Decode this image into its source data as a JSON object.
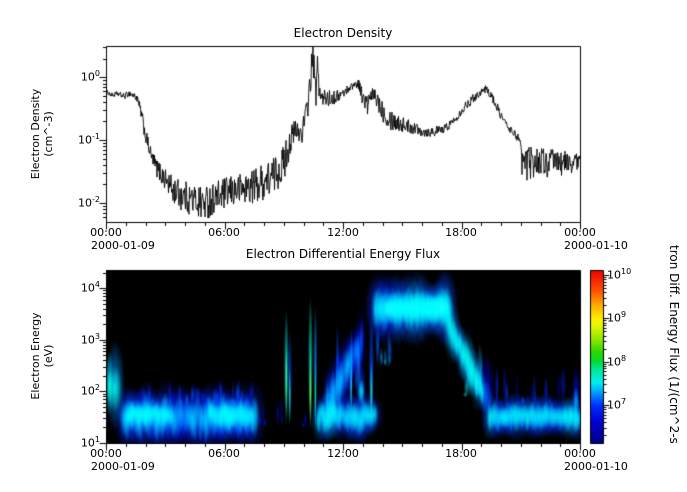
{
  "figure": {
    "background": "#ffffff",
    "frame_color": "#000000"
  },
  "chart_data": [
    {
      "type": "line",
      "title": "Electron Density",
      "ylabel_lines": [
        "Electron Density",
        "(cm^-3)"
      ],
      "line_color": "#000000",
      "x_axis": {
        "ticks": [
          "00:00",
          "06:00",
          "12:00",
          "18:00",
          "00:00"
        ],
        "tick_hours": [
          0,
          6,
          12,
          18,
          24
        ],
        "minor_every_hours": 1,
        "date_left": "2000-01-09",
        "date_right": "2000-01-10"
      },
      "y_axis": {
        "scale": "log",
        "range_log10": [
          -2.3,
          0.5
        ],
        "tick_base": "10",
        "tick_exps": [
          "0",
          "-1",
          "-2"
        ],
        "tick_values": [
          1,
          0.1,
          0.01
        ]
      },
      "series": [
        {
          "name": "electron_density_cm-3",
          "points_t_v_noise": [
            [
              0.0,
              0.6,
              0.03
            ],
            [
              0.3,
              0.52,
              0.04
            ],
            [
              0.6,
              0.55,
              0.04
            ],
            [
              0.9,
              0.5,
              0.05
            ],
            [
              1.2,
              0.56,
              0.05
            ],
            [
              1.55,
              0.48,
              0.06
            ],
            [
              1.75,
              0.3,
              0.1
            ],
            [
              2.0,
              0.12,
              0.12
            ],
            [
              2.3,
              0.055,
              0.12
            ],
            [
              2.6,
              0.035,
              0.15
            ],
            [
              3.0,
              0.024,
              0.18
            ],
            [
              3.4,
              0.016,
              0.22
            ],
            [
              3.9,
              0.013,
              0.25
            ],
            [
              4.5,
              0.011,
              0.27
            ],
            [
              5.0,
              0.01,
              0.28
            ],
            [
              5.5,
              0.012,
              0.26
            ],
            [
              6.0,
              0.014,
              0.25
            ],
            [
              6.5,
              0.016,
              0.25
            ],
            [
              7.0,
              0.017,
              0.26
            ],
            [
              7.5,
              0.019,
              0.28
            ],
            [
              8.0,
              0.022,
              0.3
            ],
            [
              8.5,
              0.028,
              0.3
            ],
            [
              9.0,
              0.042,
              0.3
            ],
            [
              9.3,
              0.095,
              0.25
            ],
            [
              9.6,
              0.14,
              0.2
            ],
            [
              9.9,
              0.13,
              0.18
            ],
            [
              10.1,
              0.22,
              0.2
            ],
            [
              10.3,
              0.6,
              0.3
            ],
            [
              10.48,
              2.4,
              0.22
            ],
            [
              10.6,
              0.5,
              0.35
            ],
            [
              10.72,
              1.3,
              0.3
            ],
            [
              10.9,
              0.42,
              0.18
            ],
            [
              11.1,
              0.48,
              0.15
            ],
            [
              11.4,
              0.46,
              0.12
            ],
            [
              11.7,
              0.5,
              0.1
            ],
            [
              12.0,
              0.55,
              0.08
            ],
            [
              12.3,
              0.68,
              0.06
            ],
            [
              12.6,
              0.78,
              0.06
            ],
            [
              12.8,
              0.8,
              0.09
            ],
            [
              13.05,
              0.42,
              0.15
            ],
            [
              13.25,
              0.36,
              0.18
            ],
            [
              13.5,
              0.54,
              0.1
            ],
            [
              13.75,
              0.44,
              0.15
            ],
            [
              14.0,
              0.3,
              0.18
            ],
            [
              14.4,
              0.22,
              0.18
            ],
            [
              14.8,
              0.19,
              0.15
            ],
            [
              15.2,
              0.17,
              0.12
            ],
            [
              15.7,
              0.155,
              0.1
            ],
            [
              16.2,
              0.135,
              0.09
            ],
            [
              16.7,
              0.14,
              0.08
            ],
            [
              17.1,
              0.15,
              0.07
            ],
            [
              17.5,
              0.19,
              0.07
            ],
            [
              17.9,
              0.27,
              0.07
            ],
            [
              18.3,
              0.38,
              0.07
            ],
            [
              18.7,
              0.5,
              0.07
            ],
            [
              19.0,
              0.6,
              0.06
            ],
            [
              19.25,
              0.66,
              0.06
            ],
            [
              19.5,
              0.52,
              0.07
            ],
            [
              19.75,
              0.36,
              0.07
            ],
            [
              20.0,
              0.25,
              0.07
            ],
            [
              20.3,
              0.17,
              0.06
            ],
            [
              20.6,
              0.135,
              0.06
            ],
            [
              20.85,
              0.115,
              0.08
            ],
            [
              21.0,
              0.055,
              0.25
            ],
            [
              21.2,
              0.042,
              0.28
            ],
            [
              21.6,
              0.045,
              0.25
            ],
            [
              22.0,
              0.048,
              0.22
            ],
            [
              22.4,
              0.042,
              0.25
            ],
            [
              22.8,
              0.046,
              0.22
            ],
            [
              23.2,
              0.043,
              0.2
            ],
            [
              23.6,
              0.045,
              0.18
            ],
            [
              24.0,
              0.046,
              0.12
            ]
          ]
        }
      ]
    },
    {
      "type": "spectrogram",
      "title": "Electron Differential Energy Flux",
      "ylabel_lines": [
        "Electron Energy",
        "(eV)"
      ],
      "background": "#000000",
      "x_axis": {
        "ticks": [
          "00:00",
          "06:00",
          "12:00",
          "18:00",
          "00:00"
        ],
        "tick_hours": [
          0,
          6,
          12,
          18,
          24
        ],
        "minor_every_hours": 1,
        "date_left": "2000-01-09",
        "date_right": "2000-01-10"
      },
      "y_axis": {
        "scale": "log",
        "range_log10": [
          1.0,
          4.35
        ],
        "tick_base": "10",
        "tick_exps": [
          "4",
          "3",
          "2",
          "1"
        ]
      },
      "colorbar": {
        "range_log10": [
          6.12,
          10.12
        ],
        "tick_base": "10",
        "tick_exps": [
          "10",
          "9",
          "8",
          "7"
        ],
        "label_visible": "tron Diff. Energy Flux (1/(cm^2-s",
        "colormap": [
          [
            0.0,
            "#000085"
          ],
          [
            0.12,
            "#0000d2"
          ],
          [
            0.22,
            "#0030ff"
          ],
          [
            0.3,
            "#00aaff"
          ],
          [
            0.35,
            "#00eeee"
          ],
          [
            0.42,
            "#00e8a0"
          ],
          [
            0.47,
            "#00dd30"
          ],
          [
            0.53,
            "#30d800"
          ],
          [
            0.6,
            "#90e800"
          ],
          [
            0.68,
            "#e8f800"
          ],
          [
            0.72,
            "#ffee00"
          ],
          [
            0.8,
            "#ffa800"
          ],
          [
            0.88,
            "#ff5000"
          ],
          [
            1.0,
            "#f00000"
          ]
        ]
      },
      "features": [
        {
          "kind": "blob",
          "t": [
            0.0,
            0.9
          ],
          "le": [
            1.3,
            2.95
          ],
          "core_le": 2.05,
          "peak": 7.8
        },
        {
          "kind": "blob",
          "t": [
            0.0,
            0.35
          ],
          "le": [
            1.55,
            2.75
          ],
          "core_le": 2.1,
          "peak": 8.0
        },
        {
          "kind": "band",
          "t": [
            0.85,
            7.6
          ],
          "le": [
            1.28,
            1.95
          ],
          "core_le": 1.5,
          "peak": 7.3,
          "ragged": 0.22
        },
        {
          "kind": "band",
          "t": [
            1.1,
            3.3
          ],
          "le": [
            1.4,
            1.72
          ],
          "core_le": 1.55,
          "peak": 7.6,
          "ragged": 0.12
        },
        {
          "kind": "band",
          "t": [
            5.2,
            7.4
          ],
          "le": [
            1.35,
            1.78
          ],
          "core_le": 1.55,
          "peak": 7.45,
          "ragged": 0.15
        },
        {
          "kind": "spikes",
          "t": [
            1.4,
            7.5
          ],
          "le": [
            1.75,
            2.25
          ],
          "peak": 6.9,
          "n": 46
        },
        {
          "kind": "spikes",
          "t": [
            7.8,
            8.95
          ],
          "le": [
            1.35,
            2.05
          ],
          "peak": 6.6,
          "n": 9
        },
        {
          "kind": "streak",
          "t": [
            9.06,
            9.2
          ],
          "le": [
            1.3,
            3.62
          ],
          "core_le": 2.2,
          "peak": 8.0
        },
        {
          "kind": "streak",
          "t": [
            9.26,
            9.35
          ],
          "le": [
            1.3,
            3.25
          ],
          "core_le": 1.9,
          "peak": 7.55
        },
        {
          "kind": "spikes",
          "t": [
            9.6,
            10.2
          ],
          "le": [
            1.32,
            1.6
          ],
          "peak": 6.7,
          "n": 5
        },
        {
          "kind": "streak",
          "t": [
            10.28,
            10.42
          ],
          "le": [
            1.35,
            3.88
          ],
          "core_le": 2.0,
          "peak": 8.15
        },
        {
          "kind": "streak",
          "t": [
            10.55,
            10.65
          ],
          "le": [
            1.35,
            3.7
          ],
          "core_le": 1.9,
          "peak": 7.7
        },
        {
          "kind": "band",
          "t": [
            10.7,
            13.65
          ],
          "le": [
            1.3,
            1.82
          ],
          "core_le": 1.5,
          "peak": 7.55,
          "ragged": 0.18
        },
        {
          "kind": "diag",
          "t": [
            11.15,
            13.0
          ],
          "le_start": 1.7,
          "le_end": 3.0,
          "half_width": 0.38,
          "peak": 7.25
        },
        {
          "kind": "spikes",
          "t": [
            11.3,
            13.1
          ],
          "le": [
            1.9,
            3.35
          ],
          "peak": 7.05,
          "n": 11
        },
        {
          "kind": "streak",
          "t": [
            12.37,
            12.45
          ],
          "le": [
            1.5,
            3.15
          ],
          "core_le": 2.1,
          "peak": 7.35
        },
        {
          "kind": "blob",
          "t": [
            12.7,
            13.15
          ],
          "le": [
            1.6,
            2.5
          ],
          "core_le": 2.0,
          "peak": 7.55
        },
        {
          "kind": "streak",
          "t": [
            13.35,
            13.52
          ],
          "le": [
            1.4,
            3.5
          ],
          "core_le": 2.0,
          "peak": 7.5
        },
        {
          "kind": "spikes",
          "t": [
            13.55,
            14.4
          ],
          "le": [
            2.5,
            3.45
          ],
          "peak": 7.2,
          "n": 10
        },
        {
          "kind": "band",
          "t": [
            13.6,
            17.35
          ],
          "le": [
            3.2,
            3.95
          ],
          "core_le": 3.6,
          "peak": 7.5,
          "ragged": 0.1
        },
        {
          "kind": "band",
          "t": [
            14.15,
            17.3
          ],
          "le": [
            3.45,
            3.8
          ],
          "core_le": 3.62,
          "peak": 7.85,
          "ragged": 0.05
        },
        {
          "kind": "diag",
          "t": [
            17.3,
            19.1
          ],
          "le_start": 3.35,
          "le_end": 1.95,
          "half_width": 0.3,
          "peak": 7.75
        },
        {
          "kind": "spikes",
          "t": [
            17.5,
            19.05
          ],
          "le": [
            1.9,
            2.95
          ],
          "peak": 7.3,
          "n": 13
        },
        {
          "kind": "blob",
          "t": [
            18.85,
            19.65
          ],
          "le": [
            1.45,
            2.7
          ],
          "core_le": 1.9,
          "peak": 7.1
        },
        {
          "kind": "band",
          "t": [
            19.35,
            24.0
          ],
          "le": [
            1.3,
            1.78
          ],
          "core_le": 1.5,
          "peak": 7.55,
          "ragged": 0.13
        },
        {
          "kind": "spikes",
          "t": [
            19.6,
            23.6
          ],
          "le": [
            1.75,
            2.55
          ],
          "peak": 6.85,
          "n": 24
        },
        {
          "kind": "blob",
          "t": [
            23.6,
            24.0
          ],
          "le": [
            1.4,
            2.45
          ],
          "core_le": 1.8,
          "peak": 7.3
        }
      ]
    }
  ]
}
